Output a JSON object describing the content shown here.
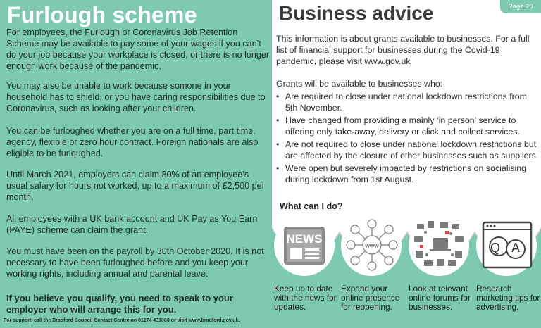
{
  "left": {
    "title": "Furlough scheme",
    "paragraphs": [
      "For employees, the Furlough or Coronavirus Job Retention Scheme may be available to pay some of your wages if you can’t do your job because your workplace is closed, or there is no longer enough work because of the pandemic.",
      "You may also be unable to work because somone in your household has to shield, or you have caring responsibilities due to Coronavirus, such as looking after your children.",
      "You can be furloughed whether you are on a full time, part time, agency, flexible or zero hour contract. Foreign nationals are also eligible to be furloughed.",
      "Until March 2021, employers can claim 80% of an employee’s usual salary for hours not worked, up to a maximum of £2,500 per month.",
      "All employees with a UK bank account and UK Pay as You Earn (PAYE) scheme can claim the grant.",
      "You must have been on the payroll by 30th October 2020. It is not necessary to have been furloughed before and you keep your working rights, including annual and parental leave."
    ],
    "bold_note": "If you believe you qualify, you need to speak to your employer who will arrange this for you.",
    "footer": "For support, call the Bradford Council Contact Centre on 01274 431000 or visit www.bradford.gov.uk."
  },
  "right": {
    "page_label": "Page 20",
    "title": "Business advice",
    "intro": "This information is about grants available to businesses. For a full list of financial support for businesses during the Covid-19 pandemic, please visit www.gov.uk",
    "grants_heading": "Grants will be available to businesses who:",
    "bullets": [
      "Are required to close under national lockdown restrictions from 5th November.",
      "Have changed from providing a mainly ‘in person’ service to offering only take-away, delivery or click and collect services.",
      "Are not required to close under national lockdown restrictions but are affected by the closure of other businesses such as suppliers",
      "Were open but severely impacted by restrictions on socialising during lockdown from 1st August."
    ],
    "what_heading": "What can I do?",
    "cards": [
      {
        "icon": "news-icon",
        "icon_text": "NEWS",
        "caption": "Keep up to date with the news for updates."
      },
      {
        "icon": "network-icon",
        "icon_text": "www",
        "caption": "Expand your online presence for reopening."
      },
      {
        "icon": "forums-icon",
        "caption": "Look at relevant online forums for businesses."
      },
      {
        "icon": "qa-icon",
        "icon_text": "Q A",
        "caption": "Research marketing tips for advertising."
      }
    ]
  },
  "colors": {
    "accent_green": "#7ecab0",
    "icon_grey": "#7a7a7a"
  }
}
